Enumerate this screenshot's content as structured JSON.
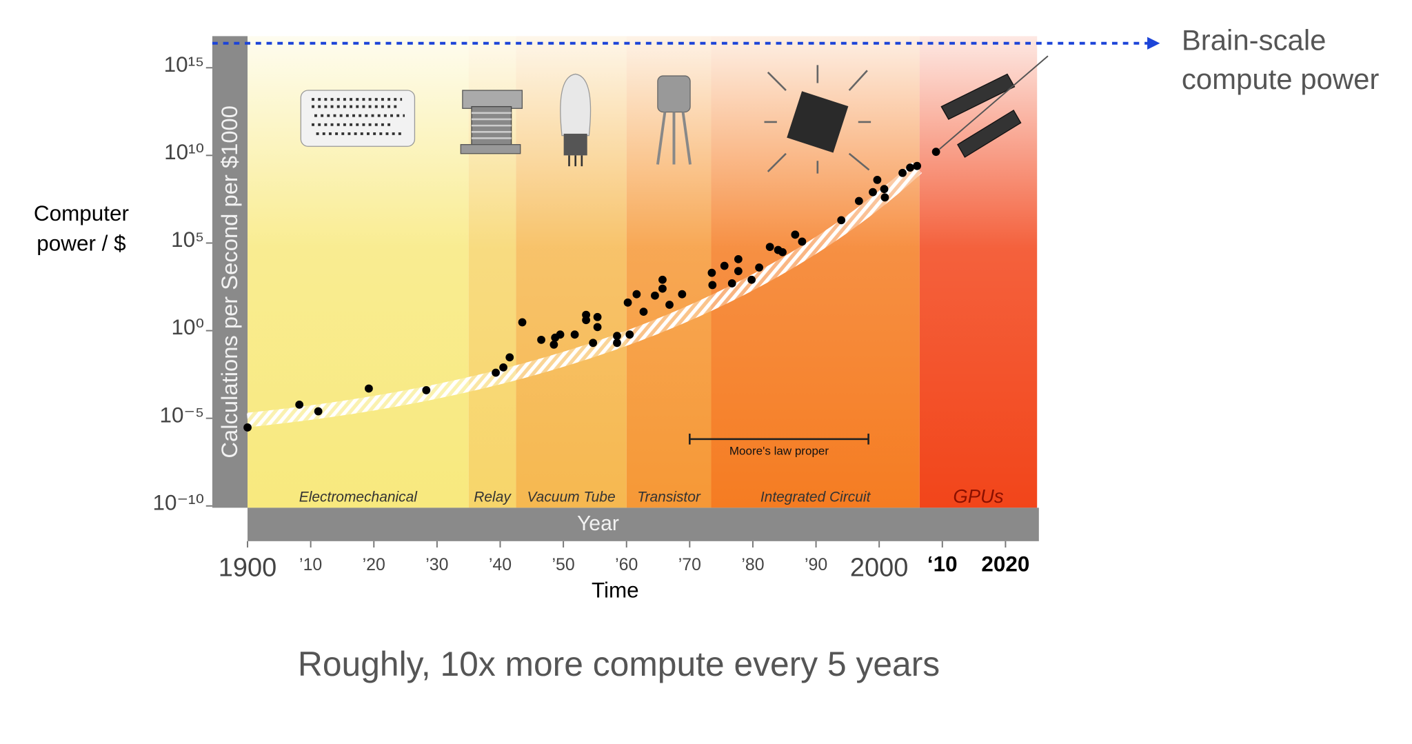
{
  "chart_data": {
    "type": "scatter",
    "y_label": [
      "Computer",
      "power / $"
    ],
    "y_axis_title": "Calculations per Second per $1000",
    "x_axis_title": "Year",
    "x_label": "Time",
    "caption": "Roughly, 10x more compute every 5 years",
    "log_y": true,
    "xlim": [
      1900,
      2025
    ],
    "ylim": [
      1e-10,
      1e+17
    ],
    "xticks": [
      {
        "value": 1900,
        "label": "1900"
      },
      {
        "value": 1910,
        "label": "’10"
      },
      {
        "value": 1920,
        "label": "’20"
      },
      {
        "value": 1930,
        "label": "’30"
      },
      {
        "value": 1940,
        "label": "’40"
      },
      {
        "value": 1950,
        "label": "’50"
      },
      {
        "value": 1960,
        "label": "’60"
      },
      {
        "value": 1970,
        "label": "’70"
      },
      {
        "value": 1980,
        "label": "’80"
      },
      {
        "value": 1990,
        "label": "’90"
      },
      {
        "value": 2000,
        "label": "2000"
      },
      {
        "value": 2010,
        "label": "‘10"
      },
      {
        "value": 2020,
        "label": "2020"
      }
    ],
    "yticks": [
      {
        "value": 1e-10,
        "label": "10⁻¹⁰"
      },
      {
        "value": 1e-05,
        "label": "10⁻⁵"
      },
      {
        "value": 1,
        "label": "10⁰"
      },
      {
        "value": 100000,
        "label": "10⁵"
      },
      {
        "value": 10000000000,
        "label": "10¹⁰"
      },
      {
        "value": 1000000000000000.0,
        "label": "10¹⁵"
      }
    ],
    "eras": [
      {
        "name": "Electromechanical",
        "start": 1900,
        "end": 1935,
        "color": "#f8e97e"
      },
      {
        "name": "Relay",
        "start": 1935,
        "end": 1942.5,
        "color": "#f7d56a"
      },
      {
        "name": "Vacuum Tube",
        "start": 1942.5,
        "end": 1960,
        "color": "#f6b850"
      },
      {
        "name": "Transistor",
        "start": 1960,
        "end": 1973.4,
        "color": "#f69836"
      },
      {
        "name": "Integrated Circuit",
        "start": 1973.4,
        "end": 2006.4,
        "color": "#f57c22"
      },
      {
        "name": "GPUs",
        "start": 2006.4,
        "end": 2025,
        "color": "#f2451a"
      }
    ],
    "trend": {
      "x": [
        1900,
        2006
      ],
      "values": [
        8e-06,
        2000000000.0
      ]
    },
    "annotation": {
      "text": "Moore's law proper",
      "x_start": 1970,
      "x_end": 1998.3
    },
    "reference_line": {
      "label": [
        "Brain-scale",
        "compute power"
      ],
      "value": 2.5e+16,
      "color": "#1c44d8"
    },
    "color": "#000000",
    "x": [
      1900,
      1908.2,
      1911.2,
      1919.2,
      1928.3,
      1939.3,
      1940.5,
      1941.5,
      1943.5,
      1946.5,
      1948.5,
      1948.7,
      1949.5,
      1951.8,
      1953.6,
      1953.6,
      1954.7,
      1955.4,
      1955.4,
      1958.5,
      1958.5,
      1960.5,
      1960.2,
      1961.6,
      1962.7,
      1964.5,
      1965.7,
      1965.7,
      1966.8,
      1968.8,
      1973.5,
      1973.6,
      1975.5,
      1976.7,
      1977.7,
      1977.7,
      1979.8,
      1981,
      1982.7,
      1984,
      1984.7,
      1986.7,
      1987.8,
      1994,
      1996.8,
      1999,
      1999.7,
      2000.8,
      2000.9,
      2003.7,
      2004.9,
      2006,
      2009
    ],
    "values": [
      3e-06,
      6e-05,
      2.5e-05,
      0.0005,
      0.0004,
      0.004,
      0.008,
      0.03,
      3,
      0.3,
      0.16,
      0.4,
      0.6,
      0.6,
      8,
      4,
      0.2,
      6,
      1.6,
      0.5,
      0.2,
      0.6,
      40,
      120,
      12,
      100,
      250,
      800,
      30,
      120,
      2000,
      400,
      5000,
      500,
      12000,
      2500,
      800,
      4000,
      60000,
      40000,
      30000,
      300000,
      120000,
      2000000,
      25000000,
      80000000,
      400000000,
      120000000,
      40000000,
      1000000000,
      2000000000,
      2500000000,
      16000000000
    ]
  }
}
